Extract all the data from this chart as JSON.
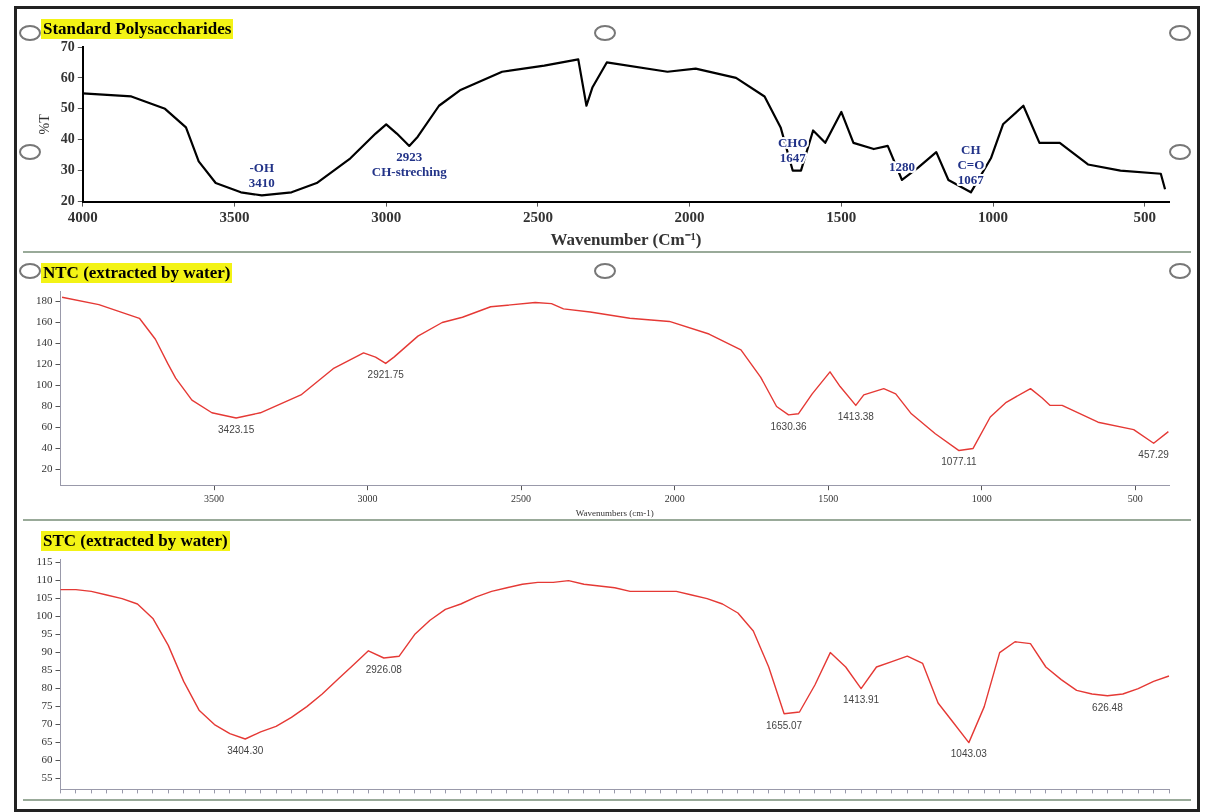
{
  "chart_data": [
    {
      "type": "line",
      "title": "Standard Polysaccharides",
      "xlabel": "Wavenumber (Cm⁻¹)",
      "ylabel": "%T",
      "xlim": [
        4000,
        420
      ],
      "xticks": [
        4000,
        3500,
        3000,
        2500,
        2000,
        1500,
        1000,
        500
      ],
      "ylim": [
        20,
        70
      ],
      "yticks": [
        20,
        30,
        40,
        50,
        60,
        70
      ],
      "x": [
        4000,
        3840,
        3729,
        3660,
        3618,
        3562,
        3479,
        3410,
        3312,
        3229,
        3118,
        3035,
        3000,
        2965,
        2924,
        2896,
        2826,
        2757,
        2618,
        2479,
        2367,
        2340,
        2320,
        2273,
        2073,
        1980,
        1847,
        1753,
        1700,
        1660,
        1633,
        1593,
        1553,
        1500,
        1460,
        1393,
        1347,
        1300,
        1247,
        1187,
        1147,
        1073,
        1007,
        967,
        900,
        847,
        780,
        687,
        580,
        447,
        433
      ],
      "series": [
        {
          "color": "#000000",
          "values": [
            55,
            54,
            50,
            44,
            33,
            26,
            23,
            22,
            23,
            26,
            34,
            42,
            45,
            42,
            38,
            41,
            51,
            56,
            62,
            64,
            66,
            51,
            57,
            65,
            62,
            63,
            60,
            54,
            44,
            30,
            30,
            43,
            39,
            49,
            39,
            37,
            38,
            27,
            31,
            36,
            27,
            23,
            34,
            45,
            51,
            39,
            39,
            32,
            30,
            29,
            24
          ]
        }
      ],
      "annotations": [
        {
          "text": "3410",
          "x": 3410,
          "y": 22
        },
        {
          "text": "-OH",
          "x": 3410,
          "y": 22
        },
        {
          "text": "2923",
          "x": 2924,
          "y": 38
        },
        {
          "text": "CH-streching",
          "x": 2924,
          "y": 38
        },
        {
          "text": "1647",
          "x": 1660,
          "y": 30
        },
        {
          "text": "CHO",
          "x": 1660,
          "y": 30
        },
        {
          "text": "1280",
          "x": 1300,
          "y": 27
        },
        {
          "text": "1067",
          "x": 1073,
          "y": 23
        },
        {
          "text": "C=O",
          "x": 1073,
          "y": 23
        },
        {
          "text": "CH",
          "x": 1073,
          "y": 23
        }
      ]
    },
    {
      "type": "line",
      "title": "NTC (extracted by water)",
      "xlabel": "Wavenumbers (cm-1)",
      "xlim": [
        4000,
        390
      ],
      "xticks": [
        3500,
        3000,
        2500,
        2000,
        1500,
        1000,
        500
      ],
      "ylim": [
        5,
        190
      ],
      "yticks": [
        20,
        40,
        60,
        80,
        100,
        120,
        140,
        160,
        180
      ],
      "x": [
        3995,
        3875,
        3743,
        3691,
        3651,
        3625,
        3572,
        3507,
        3428,
        3349,
        3217,
        3112,
        3013,
        2974,
        2941,
        2914,
        2836,
        2757,
        2691,
        2599,
        2454,
        2401,
        2362,
        2275,
        2146,
        2017,
        1888,
        1784,
        1720,
        1668,
        1629,
        1597,
        1552,
        1494,
        1461,
        1410,
        1384,
        1319,
        1280,
        1229,
        1151,
        1074,
        1028,
        972,
        920,
        841,
        803,
        777,
        738,
        621,
        505,
        440,
        392
      ],
      "series": [
        {
          "color": "#e53935",
          "values": [
            184,
            177,
            164,
            144,
            121,
            107,
            86,
            74,
            69,
            74,
            91,
            116,
            131,
            127,
            121,
            127,
            147,
            160,
            165,
            175,
            179,
            178,
            173,
            170,
            164,
            161,
            149,
            134,
            108,
            80,
            72,
            73,
            92,
            113,
            99,
            81,
            91,
            97,
            92,
            73,
            54,
            38,
            40,
            70,
            84,
            97,
            88,
            81,
            81,
            65,
            58,
            45,
            56
          ]
        }
      ],
      "annotations": [
        {
          "text": "3423.15",
          "x": 3428,
          "y": 69
        },
        {
          "text": "2921.75",
          "x": 2941,
          "y": 121
        },
        {
          "text": "1630.36",
          "x": 1629,
          "y": 72
        },
        {
          "text": "1413.38",
          "x": 1410,
          "y": 81
        },
        {
          "text": "1077.11",
          "x": 1074,
          "y": 38
        },
        {
          "text": "457.29",
          "x": 440,
          "y": 45
        }
      ]
    },
    {
      "type": "line",
      "title": "STC (extracted by water)",
      "tick_labels": "y",
      "ylim": [
        52,
        116
      ],
      "yticks": [
        55,
        60,
        65,
        70,
        75,
        80,
        85,
        90,
        95,
        100,
        105,
        110,
        115
      ],
      "categories": [
        null,
        null,
        null,
        null,
        null,
        null,
        null,
        null,
        null,
        null,
        null,
        null,
        null,
        null,
        null,
        null,
        null,
        null,
        null,
        null,
        null,
        null,
        null,
        null,
        null,
        null,
        null,
        null,
        null,
        null,
        null,
        null,
        null,
        null,
        null,
        null,
        null,
        null,
        null,
        null,
        null,
        null,
        null,
        null,
        null,
        null,
        null,
        null,
        null,
        null,
        null,
        null,
        null,
        null,
        null,
        null,
        null,
        null,
        null,
        null,
        null,
        null,
        null,
        null,
        null,
        null,
        null,
        null,
        null,
        null,
        null,
        null,
        null
      ],
      "series": [
        {
          "color": "#e53935",
          "values": [
            107.5,
            107.5,
            107,
            106,
            105,
            103.5,
            99.5,
            92,
            82,
            74,
            70,
            67.5,
            66,
            68,
            69.5,
            72,
            75,
            78.5,
            82.5,
            86.5,
            90.5,
            88.5,
            89,
            95,
            99,
            102,
            103.5,
            105.5,
            107,
            108,
            109,
            109.5,
            109.5,
            110,
            109,
            108.5,
            108,
            107,
            107,
            107,
            107,
            106,
            105,
            103.5,
            101,
            96,
            86,
            73,
            73.5,
            81,
            90,
            86,
            80,
            86,
            87.5,
            89,
            87,
            76,
            70.5,
            65,
            75,
            90,
            93,
            92.5,
            86,
            82.5,
            79.5,
            78.5,
            78,
            78.5,
            80,
            82,
            83.5
          ]
        }
      ],
      "annotations": [
        "3404.30",
        "2926.08",
        "1655.07",
        "1413.91",
        "1043.03",
        "626.48"
      ]
    }
  ]
}
